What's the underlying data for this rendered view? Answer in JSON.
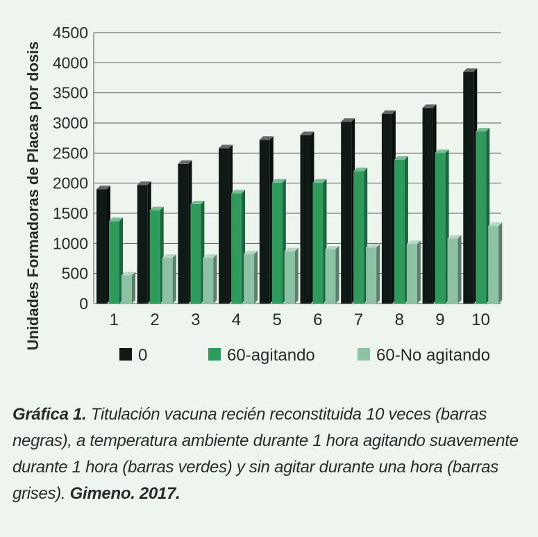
{
  "colors": {
    "background": "#eef5ee",
    "series": [
      "#0f1a16",
      "#2e9a5c",
      "#8ec2a5"
    ]
  },
  "chart_data": {
    "type": "bar",
    "style": "3d",
    "ylabel": "Unidades Formadoras de Placas  por dosis",
    "xlabel": "",
    "ylim": [
      0,
      4500
    ],
    "yticks": [
      0,
      500,
      1000,
      1500,
      2000,
      2500,
      3000,
      3500,
      4000,
      4500
    ],
    "grid": true,
    "legend_position": "bottom",
    "categories": [
      "1",
      "2",
      "3",
      "4",
      "5",
      "6",
      "7",
      "8",
      "9",
      "10"
    ],
    "series": [
      {
        "name": "0",
        "values": [
          1900,
          1970,
          2320,
          2580,
          2720,
          2800,
          3020,
          3150,
          3250,
          3850
        ]
      },
      {
        "name": "60-agitando",
        "values": [
          1370,
          1550,
          1650,
          1830,
          2010,
          2010,
          2200,
          2390,
          2500,
          2860
        ]
      },
      {
        "name": "60-No agitando",
        "values": [
          470,
          760,
          760,
          820,
          870,
          900,
          930,
          990,
          1080,
          1290
        ]
      }
    ]
  },
  "caption": {
    "label": "Gráfica 1.",
    "text": " Titulación vacuna recién reconstituida 10 veces (barras negras), a temperatura ambiente durante 1 hora agitando suavemente durante 1 hora (barras verdes) y sin agitar durante una hora (barras grises).",
    "source": " Gimeno. 2017."
  }
}
